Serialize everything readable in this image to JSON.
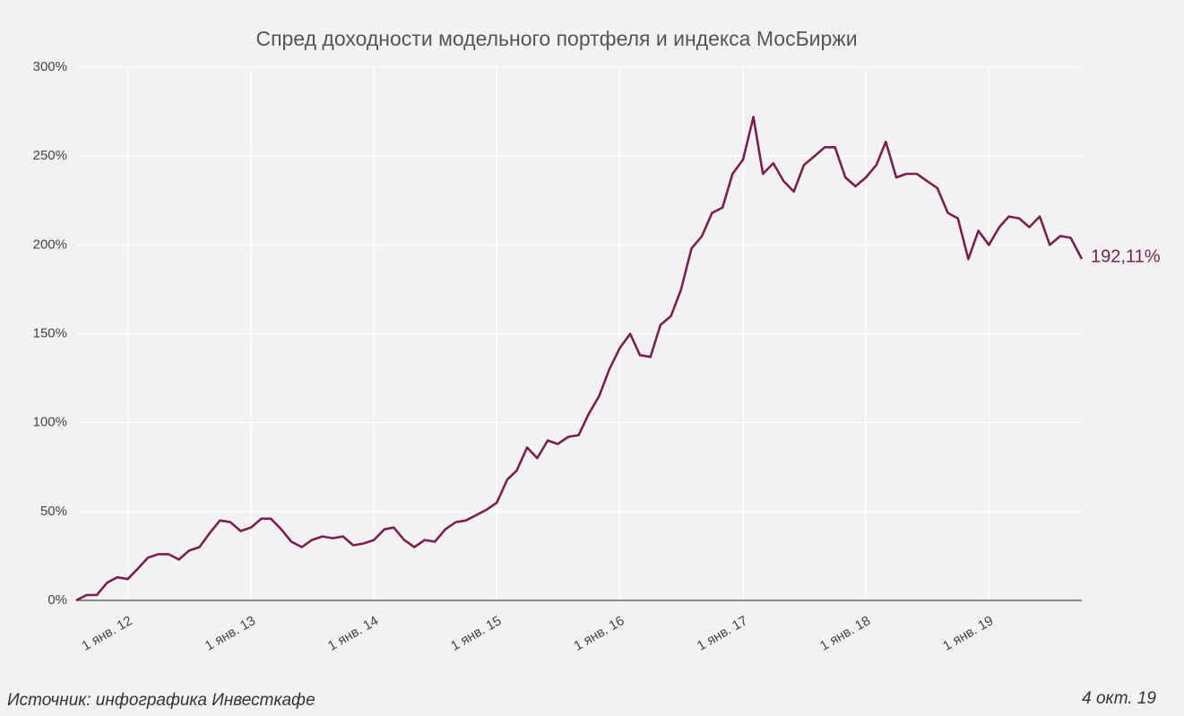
{
  "chart_data": {
    "type": "line",
    "title": "Спред доходности модельного портфеля и индекса МосБиржи",
    "source": "Источник: инфографика Инвесткафе",
    "date": "4 окт. 19",
    "x": [
      "2011-08-01",
      "2011-09-01",
      "2011-10-01",
      "2011-11-01",
      "2011-12-01",
      "2012-01-01",
      "2012-02-01",
      "2012-03-01",
      "2012-04-01",
      "2012-05-01",
      "2012-06-01",
      "2012-07-01",
      "2012-08-01",
      "2012-09-01",
      "2012-10-01",
      "2012-11-01",
      "2012-12-01",
      "2013-01-01",
      "2013-02-01",
      "2013-03-01",
      "2013-04-01",
      "2013-05-01",
      "2013-06-01",
      "2013-07-01",
      "2013-08-01",
      "2013-09-01",
      "2013-10-01",
      "2013-11-01",
      "2013-12-01",
      "2014-01-01",
      "2014-02-01",
      "2014-03-01",
      "2014-04-01",
      "2014-05-01",
      "2014-06-01",
      "2014-07-01",
      "2014-08-01",
      "2014-09-01",
      "2014-10-01",
      "2014-11-01",
      "2014-12-01",
      "2015-01-01",
      "2015-02-01",
      "2015-03-01",
      "2015-04-01",
      "2015-05-01",
      "2015-06-01",
      "2015-07-01",
      "2015-08-01",
      "2015-09-01",
      "2015-10-01",
      "2015-11-01",
      "2015-12-01",
      "2016-01-01",
      "2016-02-01",
      "2016-03-01",
      "2016-04-01",
      "2016-05-01",
      "2016-06-01",
      "2016-07-01",
      "2016-08-01",
      "2016-09-01",
      "2016-10-01",
      "2016-11-01",
      "2016-12-01",
      "2017-01-01",
      "2017-02-01",
      "2017-03-01",
      "2017-04-01",
      "2017-05-01",
      "2017-06-01",
      "2017-07-01",
      "2017-08-01",
      "2017-09-01",
      "2017-10-01",
      "2017-11-01",
      "2017-12-01",
      "2018-01-01",
      "2018-02-01",
      "2018-03-01",
      "2018-04-01",
      "2018-05-01",
      "2018-06-01",
      "2018-07-01",
      "2018-08-01",
      "2018-09-01",
      "2018-10-01",
      "2018-11-01",
      "2018-12-01",
      "2019-01-01",
      "2019-02-01",
      "2019-03-01",
      "2019-04-01",
      "2019-05-01",
      "2019-06-01",
      "2019-07-01",
      "2019-08-01",
      "2019-09-01",
      "2019-10-04"
    ],
    "series": [
      {
        "color": "#7b1f4e",
        "values": [
          0,
          3,
          3,
          10,
          13,
          12,
          18,
          24,
          26,
          26,
          23,
          28,
          30,
          38,
          45,
          44,
          39,
          41,
          46,
          46,
          40,
          33,
          30,
          34,
          36,
          35,
          36,
          31,
          32,
          34,
          40,
          41,
          34,
          30,
          34,
          33,
          40,
          44,
          45,
          48,
          51,
          55,
          68,
          73,
          86,
          80,
          90,
          88,
          92,
          93,
          105,
          115,
          130,
          142,
          150,
          138,
          137,
          155,
          160,
          175,
          198,
          205,
          218,
          221,
          240,
          248,
          272,
          240,
          246,
          236,
          230,
          245,
          250,
          255,
          255,
          238,
          233,
          238,
          245,
          258,
          238,
          240,
          240,
          236,
          232,
          218,
          215,
          192,
          208,
          200,
          210,
          216,
          215,
          210,
          216,
          200,
          205,
          204,
          192.11
        ],
        "value_labels": [
          null,
          null,
          null,
          null,
          null,
          null,
          null,
          null,
          null,
          null,
          null,
          null,
          null,
          null,
          null,
          null,
          null,
          null,
          null,
          null,
          null,
          null,
          null,
          null,
          null,
          null,
          null,
          null,
          null,
          null,
          null,
          null,
          null,
          null,
          null,
          null,
          null,
          null,
          null,
          null,
          null,
          null,
          null,
          null,
          null,
          null,
          null,
          null,
          null,
          null,
          null,
          null,
          null,
          null,
          null,
          null,
          null,
          null,
          null,
          null,
          null,
          null,
          null,
          null,
          null,
          null,
          null,
          null,
          null,
          null,
          null,
          null,
          null,
          null,
          null,
          null,
          null,
          null,
          null,
          null,
          null,
          null,
          null,
          null,
          null,
          null,
          null,
          null,
          null,
          null,
          null,
          null,
          null,
          null,
          null,
          null,
          null,
          null,
          "192,11%"
        ]
      }
    ],
    "xlim": [
      "2011-08-01",
      "2019-10-04"
    ],
    "xticks": [
      {
        "value": "2012-01-01",
        "label": "1 янв. 12"
      },
      {
        "value": "2013-01-01",
        "label": "1 янв. 13"
      },
      {
        "value": "2014-01-01",
        "label": "1 янв. 14"
      },
      {
        "value": "2015-01-01",
        "label": "1 янв. 15"
      },
      {
        "value": "2016-01-01",
        "label": "1 янв. 16"
      },
      {
        "value": "2017-01-01",
        "label": "1 янв. 17"
      },
      {
        "value": "2018-01-01",
        "label": "1 янв. 18"
      },
      {
        "value": "2019-01-01",
        "label": "1 янв. 19"
      }
    ],
    "ylim": [
      0,
      300
    ],
    "yticks": [
      {
        "value": 0,
        "label": "0%"
      },
      {
        "value": 50,
        "label": "50%"
      },
      {
        "value": 100,
        "label": "100%"
      },
      {
        "value": 150,
        "label": "150%"
      },
      {
        "value": 200,
        "label": "200%"
      },
      {
        "value": 250,
        "label": "250%"
      },
      {
        "value": 300,
        "label": "300%"
      }
    ],
    "grid": true
  }
}
